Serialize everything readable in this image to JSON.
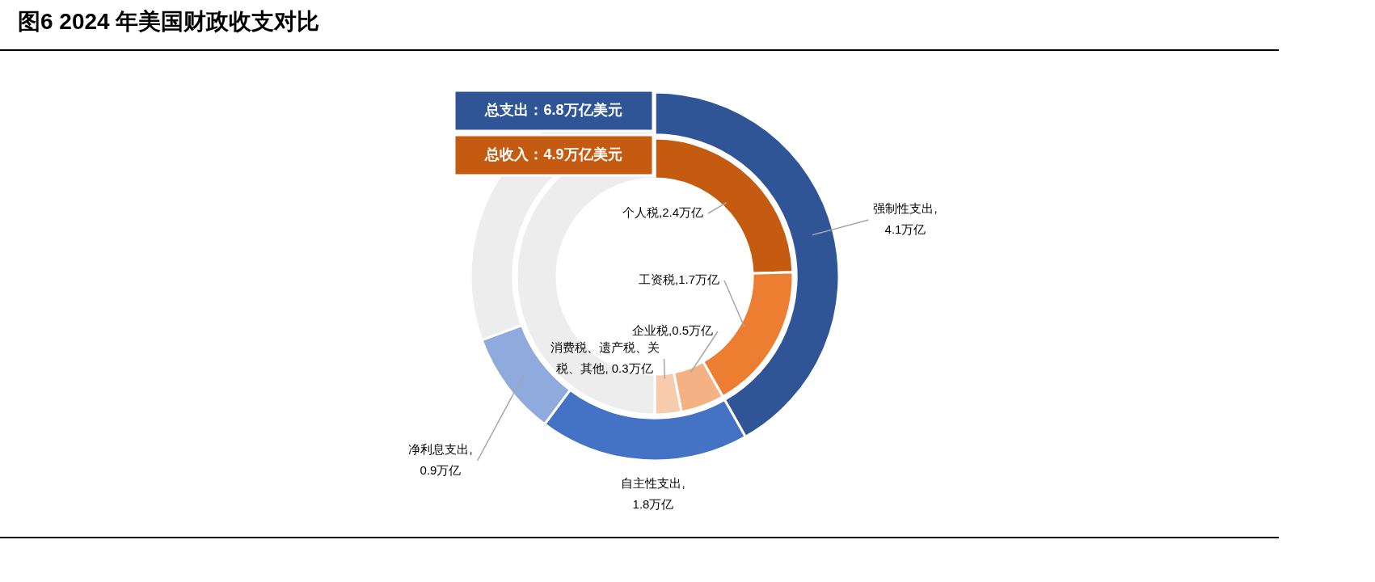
{
  "chart_data": [
    {
      "type": "donut",
      "title": "图6  2024 年美国财政收支对比",
      "legend": "top left",
      "categories": [
        "强制性支出,4.1万亿",
        "自主性支出,1.8万亿",
        "净利息支出,0.9万亿",
        null
      ],
      "colors": [
        "#2f5597",
        "#4472c4",
        "#8faadc",
        "#ededed"
      ],
      "series": [
        {
          "name": "总支出：6.8万亿美元",
          "color": "#2f5597",
          "values": [
            41.8,
            18.4,
            9.2,
            30.6
          ]
        }
      ]
    },
    {
      "type": "donut",
      "legend": "top left",
      "categories": [
        "个人税,2.4万亿",
        "工资税,1.7万亿",
        "企业税,0.5万亿",
        "消费税、遗产税、关税、其他, 0.3万亿",
        null
      ],
      "colors": [
        "#c55a11",
        "#ed7d31",
        "#f4b183",
        "#f8cbad",
        "#ededed"
      ],
      "series": [
        {
          "name": "总收入：4.9万亿美元",
          "color": "#c55a11",
          "values": [
            24.5,
            17.3,
            5.1,
            3.1,
            50
          ]
        }
      ]
    }
  ]
}
